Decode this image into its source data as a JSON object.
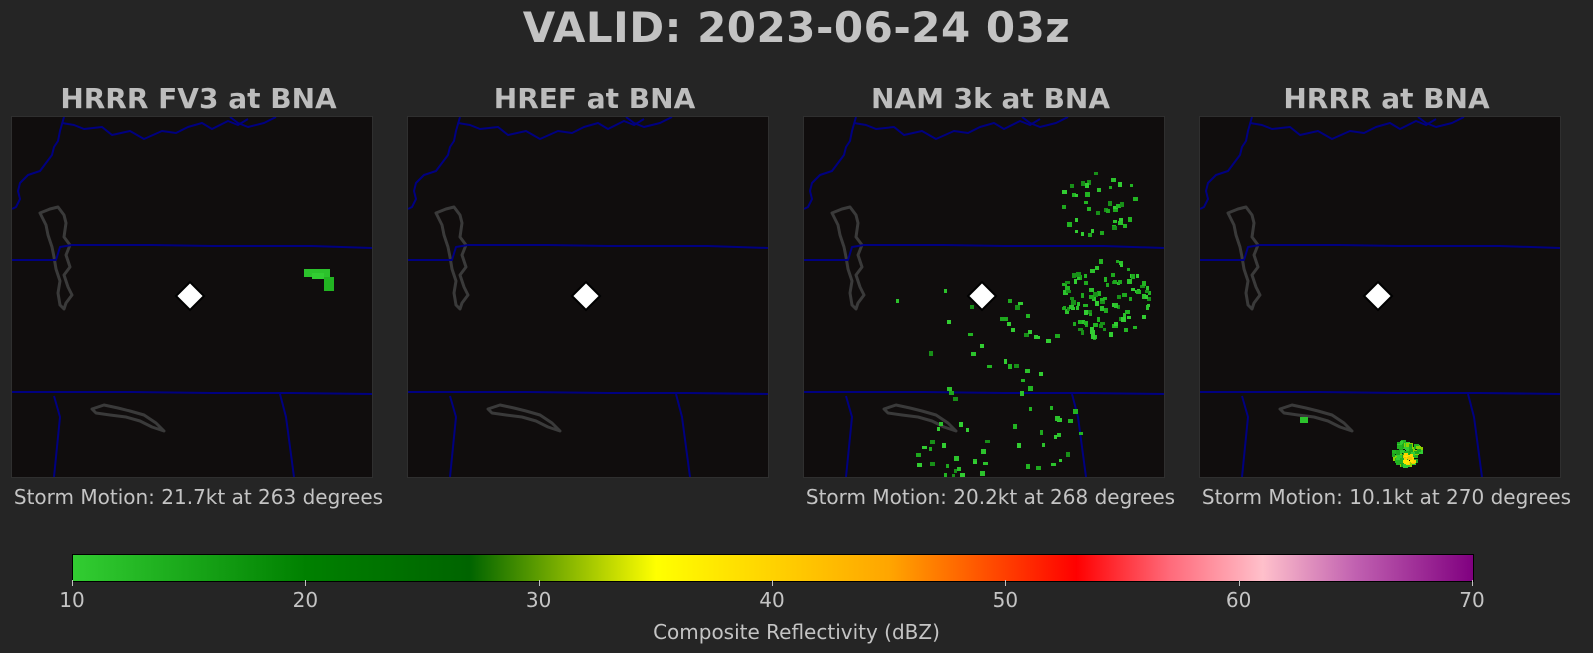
{
  "title": "VALID: 2023-06-24 03z",
  "panels": [
    {
      "title": "HRRR FV3 at BNA",
      "motion": "Storm Motion: 21.7kt at 263 degrees",
      "echo": "fv3"
    },
    {
      "title": "HREF at BNA",
      "motion": "",
      "echo": "none"
    },
    {
      "title": "NAM 3k at BNA",
      "motion": "Storm Motion: 20.2kt at 268 degrees",
      "echo": "nam"
    },
    {
      "title": "HRRR at BNA",
      "motion": "Storm Motion: 10.1kt at 270 degrees",
      "echo": "hrrr"
    }
  ],
  "colorbar": {
    "label": "Composite Reflectivity (dBZ)",
    "ticks": [
      "10",
      "20",
      "30",
      "40",
      "50",
      "60",
      "70"
    ],
    "min": 10,
    "max": 70,
    "stops": [
      {
        "v": 10,
        "c": "#32cd32"
      },
      {
        "v": 20,
        "c": "#008000"
      },
      {
        "v": 27,
        "c": "#006400"
      },
      {
        "v": 35,
        "c": "#ffff00"
      },
      {
        "v": 45,
        "c": "#ffa500"
      },
      {
        "v": 53,
        "c": "#ff0000"
      },
      {
        "v": 57,
        "c": "#ff6a7a"
      },
      {
        "v": 61,
        "c": "#ffc0cb"
      },
      {
        "v": 65,
        "c": "#c060b0"
      },
      {
        "v": 70,
        "c": "#800080"
      }
    ]
  },
  "colors": {
    "background": "#252525",
    "map": "#100d0d",
    "borders": "#000080",
    "water": "#3a3a3a",
    "echo_green": "#22aa22",
    "echo_yellow": "#ffd400",
    "site_marker": "#ffffff"
  }
}
